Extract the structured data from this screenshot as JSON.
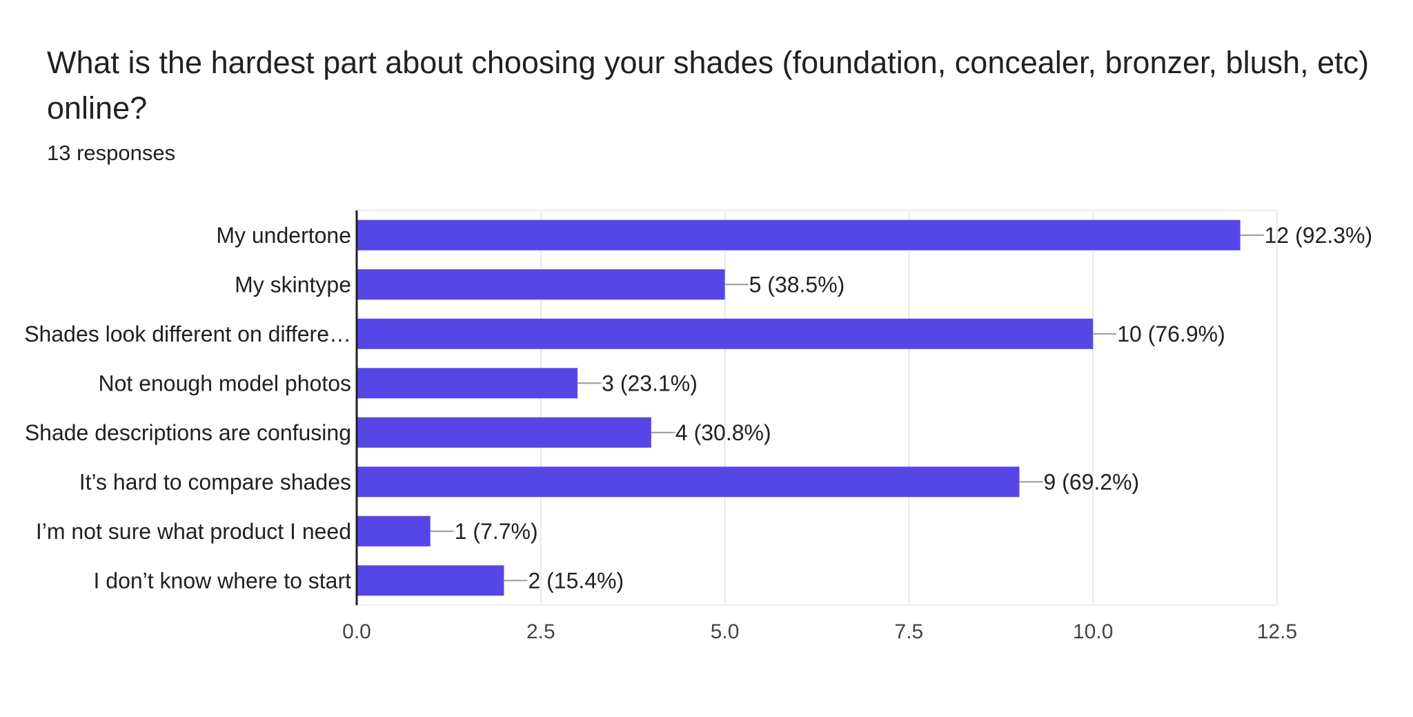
{
  "question": {
    "title": "What is the hardest part about choosing your shades (foundation, concealer, bronzer, blush, etc) online?",
    "responses": "13 responses"
  },
  "chart_data": {
    "type": "bar",
    "orientation": "horizontal",
    "categories": [
      "My undertone",
      "My skintype",
      "Shades look different on differe…",
      "Not enough model photos",
      "Shade descriptions are confusing",
      "It’s hard to compare shades",
      "I’m not sure what product I need",
      "I don’t know where to start"
    ],
    "values": [
      12,
      5,
      10,
      3,
      4,
      9,
      1,
      2
    ],
    "data_labels": [
      "12 (92.3%)",
      "5 (38.5%)",
      "10 (76.9%)",
      "3 (23.1%)",
      "4 (30.8%)",
      "9 (69.2%)",
      "1 (7.7%)",
      "2 (15.4%)"
    ],
    "xlim": [
      0,
      12.5
    ],
    "x_ticks": [
      "0.0",
      "2.5",
      "5.0",
      "7.5",
      "10.0",
      "12.5"
    ],
    "grid": true,
    "bar_color": "#5746e6"
  }
}
